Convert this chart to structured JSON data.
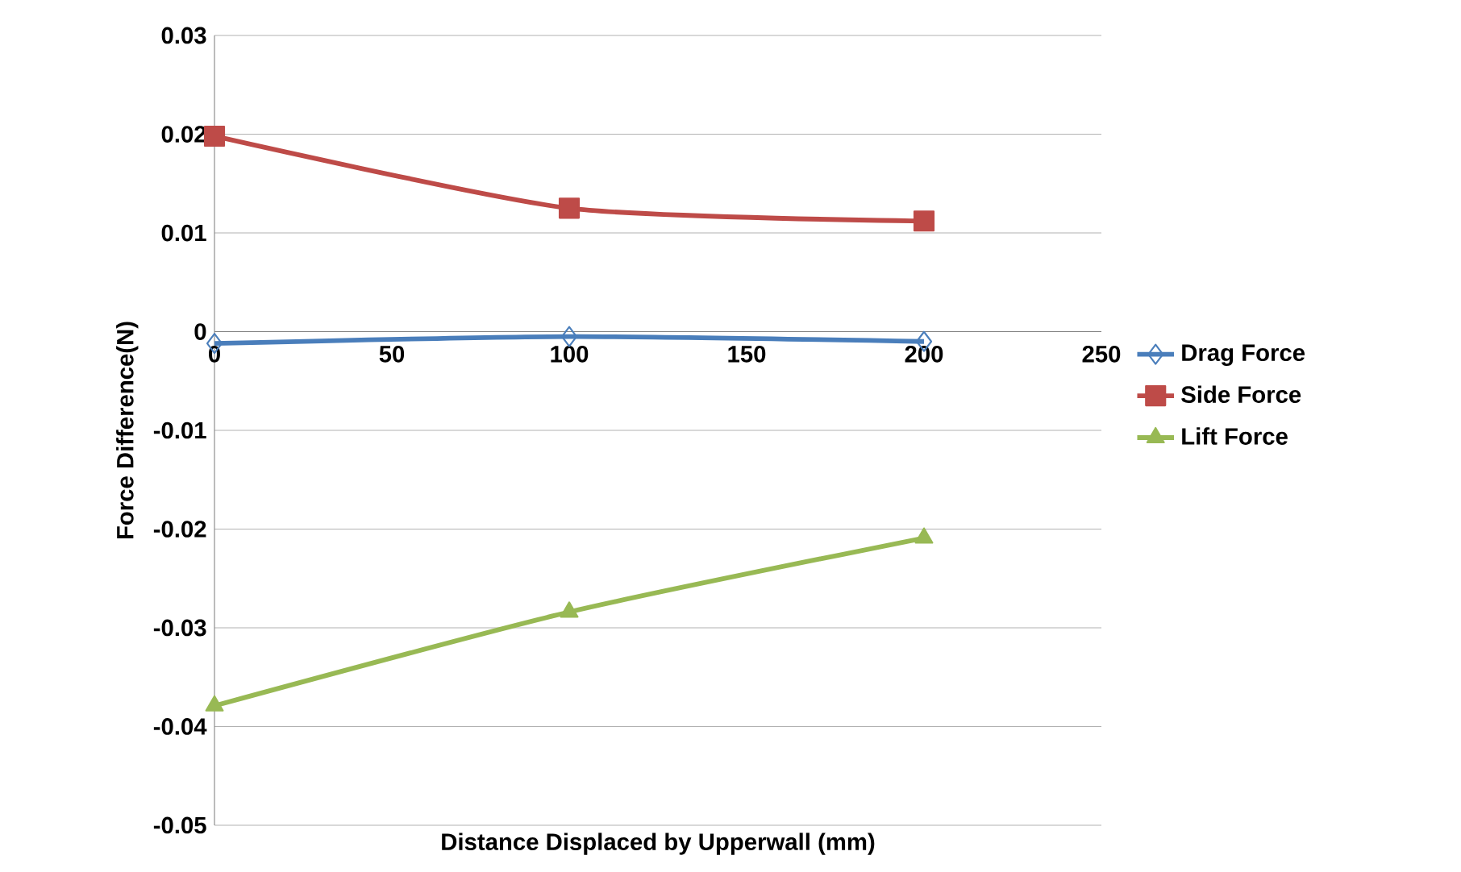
{
  "chart_data": {
    "type": "line",
    "xlabel": "Distance Displaced by Upperwall (mm)",
    "ylabel": "Force Difference(N)",
    "x": [
      0,
      100,
      200
    ],
    "series": [
      {
        "name": "Drag Force",
        "color": "#4a7ebb",
        "values": [
          -0.0012,
          -0.0005,
          -0.001
        ],
        "marker": "diamond"
      },
      {
        "name": "Side Force",
        "color": "#be4b48",
        "values": [
          0.0198,
          0.0125,
          0.0112
        ],
        "marker": "square"
      },
      {
        "name": "Lift Force",
        "color": "#98b954",
        "values": [
          -0.0379,
          -0.0284,
          -0.0209
        ],
        "marker": "triangle"
      }
    ],
    "xlim": [
      0,
      250
    ],
    "xticks": [
      0,
      50,
      100,
      150,
      200,
      250
    ],
    "ylim": [
      -0.05,
      0.03
    ],
    "yticks": [
      -0.05,
      -0.04,
      -0.03,
      -0.02,
      -0.01,
      0,
      0.01,
      0.02,
      0.03
    ],
    "grid": "y",
    "legend": "right",
    "line_style": "solid"
  }
}
